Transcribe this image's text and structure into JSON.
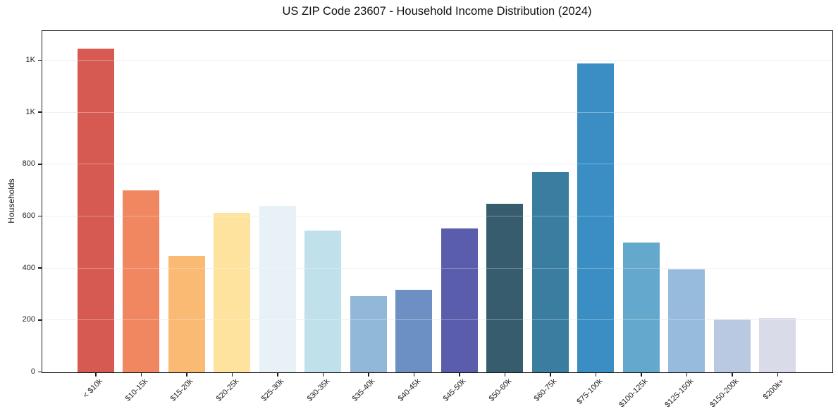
{
  "title": "US ZIP Code 23607 - Household Income Distribution (2024)",
  "chart_data": {
    "type": "bar",
    "title": "US ZIP Code 23607 - Household Income Distribution (2024)",
    "xlabel": "",
    "ylabel": "Households",
    "categories": [
      "< $10k",
      "$10-15k",
      "$15-20k",
      "$20-25k",
      "$25-30k",
      "$30-35k",
      "$35-40k",
      "$40-45k",
      "$45-50k",
      "$50-60k",
      "$60-75k",
      "$75-100k",
      "$100-125k",
      "$125-150k",
      "$150-200k",
      "$200k+"
    ],
    "values": [
      1245,
      700,
      448,
      613,
      640,
      546,
      293,
      318,
      555,
      648,
      770,
      1190,
      500,
      395,
      204,
      208
    ],
    "bar_colors": [
      "#d65a52",
      "#f08761",
      "#faba74",
      "#fde39e",
      "#e7f1f6",
      "#c0e0ec",
      "#92b8d9",
      "#6d90c4",
      "#5a5dab",
      "#375c6e",
      "#3a7da1",
      "#3a8ec4",
      "#64a9cd",
      "#96bbdc",
      "#bac9e2",
      "#d9dbe9"
    ],
    "ylim": [
      0,
      1311
    ],
    "yticks": {
      "values": [
        0,
        200,
        400,
        600,
        800,
        1000,
        1200
      ],
      "labels": [
        "0",
        "200",
        "400",
        "600",
        "800",
        "1K",
        "1K"
      ]
    },
    "grid": "horizontal",
    "gridline_color": "#e9e9e9",
    "legend": "none",
    "background": "#ffffff"
  }
}
